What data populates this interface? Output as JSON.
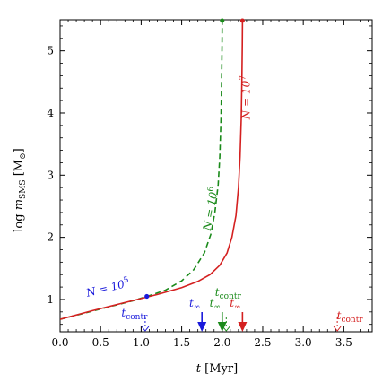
{
  "chart_data": {
    "type": "line",
    "xlabel": "t [Myr]",
    "ylabel": "log m_SMS [M_⊙]",
    "xlim": [
      0,
      3.85
    ],
    "ylim": [
      0.48,
      5.5
    ],
    "xticks": [
      0.0,
      0.5,
      1.0,
      1.5,
      2.0,
      2.5,
      3.0,
      3.5
    ],
    "xtick_labels": [
      "0.0",
      "0.5",
      "1.0",
      "1.5",
      "2.0",
      "2.5",
      "3.0",
      "3.5"
    ],
    "yticks": [
      1,
      2,
      3,
      4,
      5
    ],
    "ytick_labels": [
      "1",
      "2",
      "3",
      "4",
      "5"
    ],
    "grid": false,
    "series": [
      {
        "name": "N = 10^5",
        "label_base": "N = 10",
        "label_exp": "5",
        "color": "#1a1adb",
        "style": "point",
        "x": [
          1.07
        ],
        "y": [
          1.05
        ]
      },
      {
        "name": "N = 10^6",
        "label_base": "N = 10",
        "label_exp": "6",
        "color": "#1a8a1a",
        "style": "dashed",
        "x": [
          0.0,
          0.3,
          0.6,
          0.9,
          1.1,
          1.3,
          1.5,
          1.65,
          1.78,
          1.86,
          1.91,
          1.95,
          1.97,
          1.985,
          1.993,
          1.998,
          2.0
        ],
        "y": [
          0.68,
          0.78,
          0.88,
          0.98,
          1.06,
          1.15,
          1.3,
          1.48,
          1.75,
          2.05,
          2.4,
          2.85,
          3.3,
          3.9,
          4.5,
          5.1,
          5.5
        ]
      },
      {
        "name": "N = 10^7",
        "label_base": "N = 10",
        "label_exp": "7",
        "color": "#d42020",
        "style": "solid",
        "x": [
          0.0,
          0.4,
          0.8,
          1.2,
          1.5,
          1.7,
          1.85,
          1.97,
          2.06,
          2.12,
          2.17,
          2.2,
          2.22,
          2.235,
          2.243,
          2.248,
          2.25
        ],
        "y": [
          0.68,
          0.82,
          0.95,
          1.08,
          1.19,
          1.29,
          1.4,
          1.55,
          1.75,
          2.0,
          2.35,
          2.8,
          3.3,
          3.9,
          4.5,
          5.1,
          5.5
        ]
      }
    ],
    "markers": [
      {
        "kind": "t_inf",
        "label": "t",
        "sub": "∞",
        "x": 1.75,
        "color": "#1a1adb",
        "style": "filled"
      },
      {
        "kind": "t_inf",
        "label": "t",
        "sub": "∞",
        "x": 2.0,
        "color": "#1a8a1a",
        "style": "filled"
      },
      {
        "kind": "t_inf",
        "label": "t",
        "sub": "∞",
        "x": 2.25,
        "color": "#d42020",
        "style": "filled"
      },
      {
        "kind": "t_contr",
        "label": "t",
        "sub": "contr",
        "x": 1.05,
        "color": "#1a1adb",
        "style": "open"
      },
      {
        "kind": "t_contr",
        "label": "t",
        "sub": "contr",
        "x": 2.05,
        "color": "#1a8a1a",
        "style": "open"
      },
      {
        "kind": "t_contr",
        "label": "t",
        "sub": "contr",
        "x": 3.42,
        "color": "#d42020",
        "style": "open"
      }
    ]
  }
}
